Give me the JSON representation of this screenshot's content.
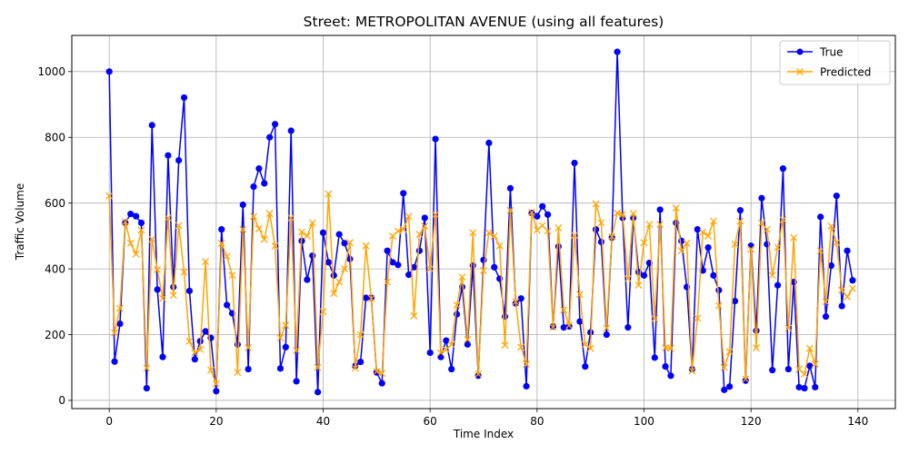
{
  "chart_data": {
    "type": "line",
    "title": "Street: METROPOLITAN AVENUE (using all features)",
    "xlabel": "Time Index",
    "ylabel": "Traffic Volume",
    "xlim": [
      -7,
      147
    ],
    "ylim": [
      -25,
      1110
    ],
    "xticks": [
      0,
      20,
      40,
      60,
      80,
      100,
      120,
      140
    ],
    "yticks": [
      0,
      200,
      400,
      600,
      800,
      1000
    ],
    "grid": true,
    "legend_position": "top-right",
    "colors": {
      "true": "#0000ff",
      "predicted": "#ffa500",
      "grid": "#b0b0b0"
    },
    "series": [
      {
        "name": "True",
        "marker": "circle",
        "values": [
          1000,
          118,
          233,
          540,
          567,
          560,
          540,
          37,
          837,
          337,
          132,
          745,
          345,
          730,
          921,
          333,
          125,
          180,
          210,
          190,
          28,
          520,
          290,
          265,
          170,
          595,
          95,
          650,
          705,
          660,
          800,
          840,
          97,
          162,
          820,
          58,
          485,
          367,
          440,
          25,
          510,
          420,
          380,
          505,
          478,
          430,
          105,
          117,
          312,
          312,
          85,
          52,
          455,
          420,
          412,
          630,
          382,
          405,
          455,
          555,
          145,
          795,
          132,
          182,
          95,
          262,
          345,
          170,
          410,
          75,
          427,
          783,
          405,
          370,
          255,
          645,
          295,
          310,
          43,
          570,
          560,
          590,
          565,
          225,
          468,
          222,
          225,
          722,
          240,
          103,
          207,
          520,
          482,
          200,
          495,
          1060,
          555,
          222,
          555,
          390,
          380,
          418,
          130,
          580,
          103,
          75,
          540,
          485,
          345,
          95,
          520,
          395,
          465,
          380,
          335,
          32,
          42,
          302,
          578,
          60,
          470,
          212,
          615,
          475,
          92,
          350,
          705,
          95,
          360,
          40,
          37,
          105,
          40,
          558,
          255,
          410,
          622,
          287,
          455,
          365
        ]
      },
      {
        "name": "Predicted",
        "marker": "x",
        "values": [
          622,
          205,
          280,
          543,
          478,
          445,
          518,
          98,
          490,
          398,
          310,
          555,
          320,
          532,
          390,
          180,
          145,
          155,
          422,
          92,
          50,
          478,
          438,
          380,
          85,
          520,
          160,
          560,
          522,
          490,
          568,
          470,
          190,
          228,
          555,
          152,
          512,
          500,
          540,
          100,
          270,
          628,
          325,
          360,
          400,
          480,
          98,
          200,
          470,
          310,
          88,
          82,
          360,
          500,
          515,
          520,
          560,
          257,
          505,
          530,
          400,
          565,
          145,
          155,
          170,
          290,
          375,
          185,
          510,
          80,
          395,
          510,
          500,
          470,
          168,
          578,
          300,
          162,
          110,
          572,
          518,
          532,
          515,
          222,
          525,
          275,
          228,
          502,
          322,
          170,
          158,
          598,
          540,
          220,
          498,
          570,
          565,
          370,
          568,
          350,
          480,
          535,
          248,
          535,
          160,
          158,
          585,
          455,
          478,
          90,
          250,
          512,
          500,
          545,
          288,
          100,
          148,
          475,
          545,
          65,
          460,
          160,
          540,
          520,
          380,
          465,
          550,
          220,
          495,
          95,
          80,
          158,
          110,
          455,
          300,
          530,
          480,
          335,
          315,
          340
        ]
      }
    ]
  }
}
